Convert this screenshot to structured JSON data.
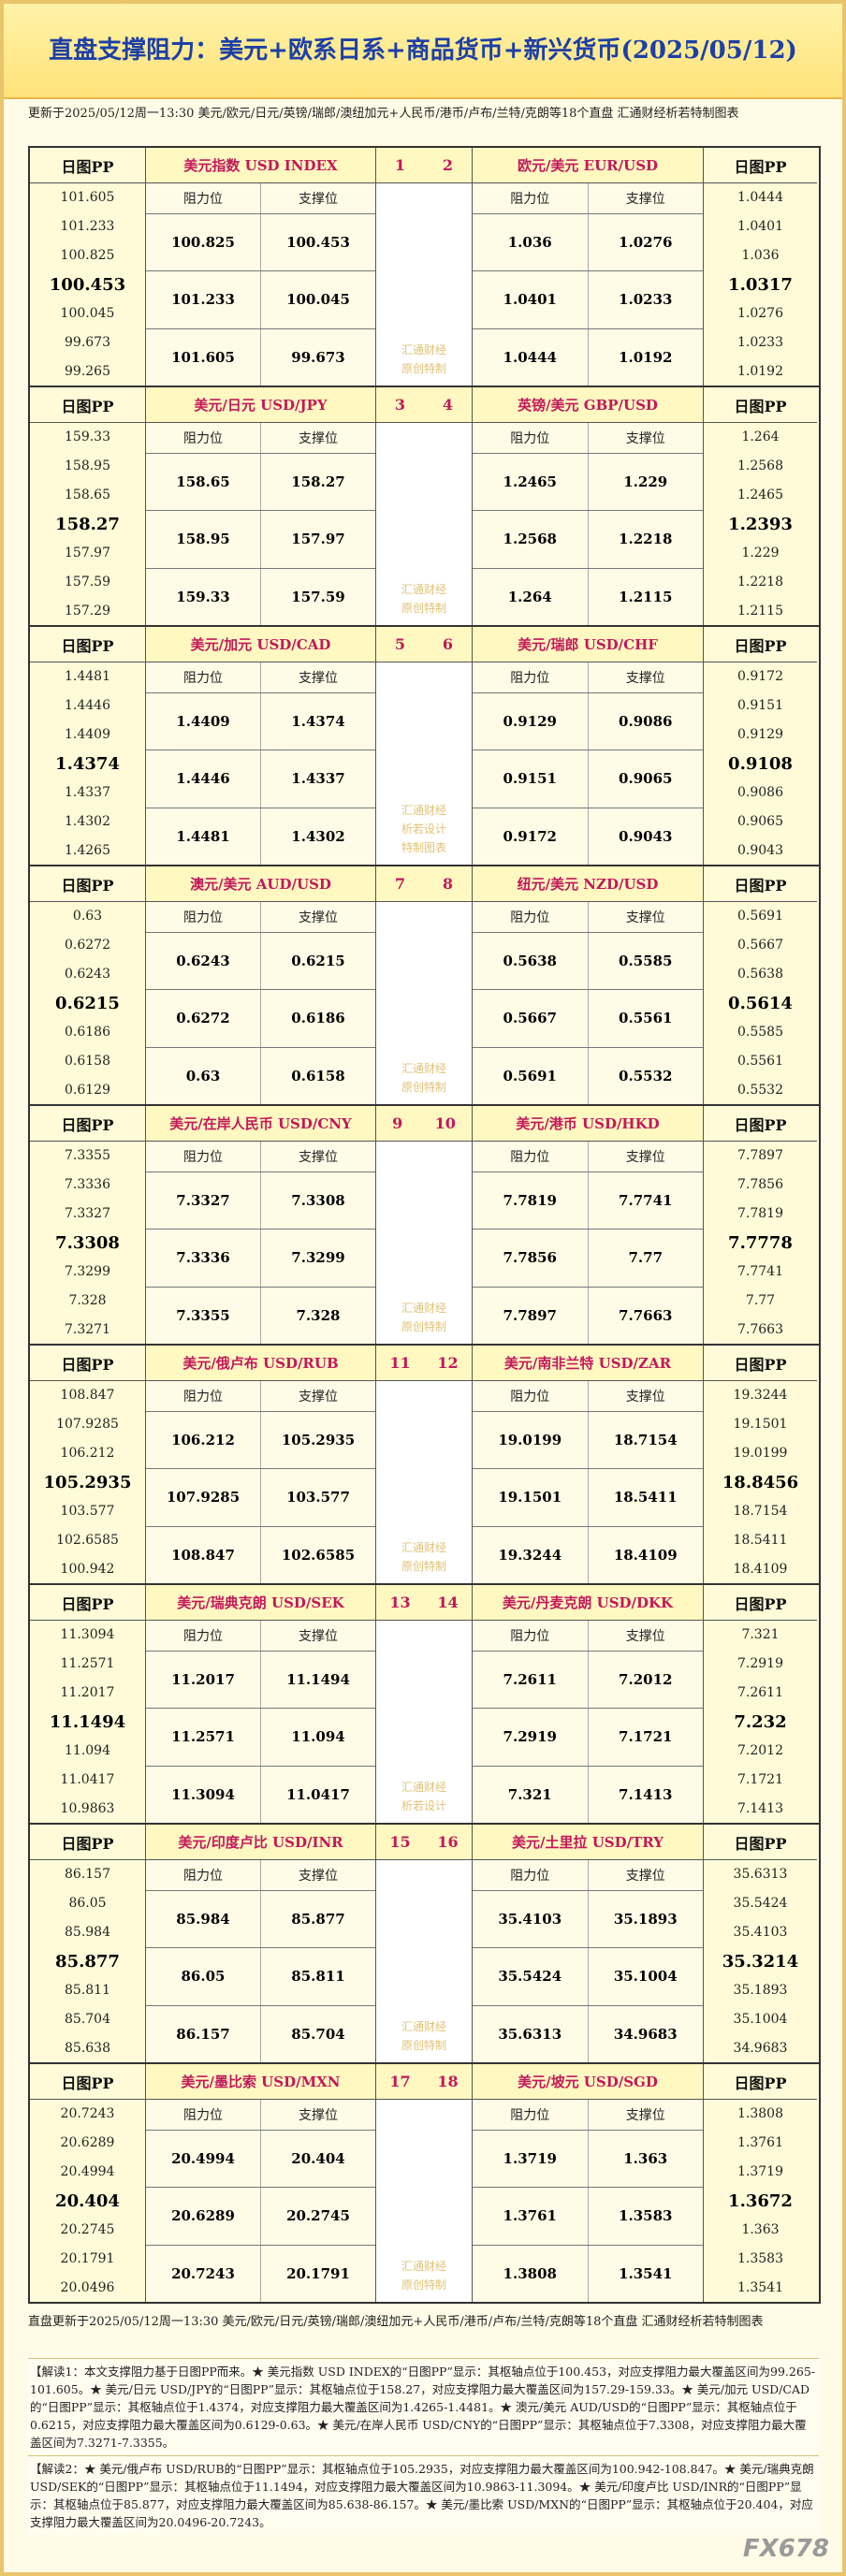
{
  "header": {
    "title": "直盘支撑阻力：美元+欧系日系+商品货币+新兴货币(2025/05/12)",
    "update": "更新于2025/05/12周一13:30 美元/欧元/日元/英镑/瑞郎/澳纽加元+人民币/港币/卢布/兰特/克朗等18个直盘 汇通财经析若特制图表"
  },
  "labels": {
    "pp": "日图PP",
    "resistance": "阻力位",
    "support": "支撑位"
  },
  "blocks": [
    {
      "watermark": [
        "汇通财经",
        "原创特制"
      ],
      "pairs": [
        {
          "number": 1,
          "name": "美元指数 USD INDEX",
          "pp": [
            101.605,
            101.233,
            100.825,
            100.453,
            100.045,
            99.673,
            99.265
          ],
          "levels": [
            [
              100.825,
              100.453
            ],
            [
              101.233,
              100.045
            ],
            [
              101.605,
              99.673
            ]
          ]
        },
        {
          "number": 2,
          "name": "欧元/美元 EUR/USD",
          "pp": [
            1.0444,
            1.0401,
            1.036,
            1.0317,
            1.0276,
            1.0233,
            1.0192
          ],
          "levels": [
            [
              1.036,
              1.0276
            ],
            [
              1.0401,
              1.0233
            ],
            [
              1.0444,
              1.0192
            ]
          ]
        }
      ]
    },
    {
      "watermark": [
        "汇通财经",
        "原创特制"
      ],
      "pairs": [
        {
          "number": 3,
          "name": "美元/日元 USD/JPY",
          "pp": [
            159.33,
            158.95,
            158.65,
            158.27,
            157.97,
            157.59,
            157.29
          ],
          "levels": [
            [
              158.65,
              158.27
            ],
            [
              158.95,
              157.97
            ],
            [
              159.33,
              157.59
            ]
          ]
        },
        {
          "number": 4,
          "name": "英镑/美元 GBP/USD",
          "pp": [
            1.264,
            1.2568,
            1.2465,
            1.2393,
            1.229,
            1.2218,
            1.2115
          ],
          "levels": [
            [
              1.2465,
              1.229
            ],
            [
              1.2568,
              1.2218
            ],
            [
              1.264,
              1.2115
            ]
          ]
        }
      ]
    },
    {
      "watermark": [
        "汇通财经",
        "析若设计",
        "特制图表"
      ],
      "pairs": [
        {
          "number": 5,
          "name": "美元/加元 USD/CAD",
          "pp": [
            1.4481,
            1.4446,
            1.4409,
            1.4374,
            1.4337,
            1.4302,
            1.4265
          ],
          "levels": [
            [
              1.4409,
              1.4374
            ],
            [
              1.4446,
              1.4337
            ],
            [
              1.4481,
              1.4302
            ]
          ]
        },
        {
          "number": 6,
          "name": "美元/瑞郎 USD/CHF",
          "pp": [
            0.9172,
            0.9151,
            0.9129,
            0.9108,
            0.9086,
            0.9065,
            0.9043
          ],
          "levels": [
            [
              0.9129,
              0.9086
            ],
            [
              0.9151,
              0.9065
            ],
            [
              0.9172,
              0.9043
            ]
          ]
        }
      ]
    },
    {
      "watermark": [
        "汇通财经",
        "原创特制"
      ],
      "pairs": [
        {
          "number": 7,
          "name": "澳元/美元 AUD/USD",
          "pp": [
            0.63,
            0.6272,
            0.6243,
            0.6215,
            0.6186,
            0.6158,
            0.6129
          ],
          "levels": [
            [
              0.6243,
              0.6215
            ],
            [
              0.6272,
              0.6186
            ],
            [
              0.63,
              0.6158
            ]
          ]
        },
        {
          "number": 8,
          "name": "纽元/美元 NZD/USD",
          "pp": [
            0.5691,
            0.5667,
            0.5638,
            0.5614,
            0.5585,
            0.5561,
            0.5532
          ],
          "levels": [
            [
              0.5638,
              0.5585
            ],
            [
              0.5667,
              0.5561
            ],
            [
              0.5691,
              0.5532
            ]
          ]
        }
      ]
    },
    {
      "watermark": [
        "汇通财经",
        "原创特制"
      ],
      "pairs": [
        {
          "number": 9,
          "name": "美元/在岸人民币 USD/CNY",
          "pp": [
            7.3355,
            7.3336,
            7.3327,
            7.3308,
            7.3299,
            7.328,
            7.3271
          ],
          "levels": [
            [
              7.3327,
              7.3308
            ],
            [
              7.3336,
              7.3299
            ],
            [
              7.3355,
              7.328
            ]
          ]
        },
        {
          "number": 10,
          "name": "美元/港币 USD/HKD",
          "pp": [
            7.7897,
            7.7856,
            7.7819,
            7.7778,
            7.7741,
            7.77,
            7.7663
          ],
          "levels": [
            [
              7.7819,
              7.7741
            ],
            [
              7.7856,
              7.77
            ],
            [
              7.7897,
              7.7663
            ]
          ]
        }
      ]
    },
    {
      "watermark": [
        "汇通财经",
        "原创特制"
      ],
      "pairs": [
        {
          "number": 11,
          "name": "美元/俄卢布 USD/RUB",
          "pp": [
            108.847,
            107.9285,
            106.212,
            105.2935,
            103.577,
            102.6585,
            100.942
          ],
          "levels": [
            [
              106.212,
              105.2935
            ],
            [
              107.9285,
              103.577
            ],
            [
              108.847,
              102.6585
            ]
          ]
        },
        {
          "number": 12,
          "name": "美元/南非兰特 USD/ZAR",
          "pp": [
            19.3244,
            19.1501,
            19.0199,
            18.8456,
            18.7154,
            18.5411,
            18.4109
          ],
          "levels": [
            [
              19.0199,
              18.7154
            ],
            [
              19.1501,
              18.5411
            ],
            [
              19.3244,
              18.4109
            ]
          ]
        }
      ]
    },
    {
      "watermark": [
        "汇通财经",
        "析若设计"
      ],
      "pairs": [
        {
          "number": 13,
          "name": "美元/瑞典克朗 USD/SEK",
          "pp": [
            11.3094,
            11.2571,
            11.2017,
            11.1494,
            11.094,
            11.0417,
            10.9863
          ],
          "levels": [
            [
              11.2017,
              11.1494
            ],
            [
              11.2571,
              11.094
            ],
            [
              11.3094,
              11.0417
            ]
          ]
        },
        {
          "number": 14,
          "name": "美元/丹麦克朗 USD/DKK",
          "pp": [
            7.321,
            7.2919,
            7.2611,
            7.232,
            7.2012,
            7.1721,
            7.1413
          ],
          "levels": [
            [
              7.2611,
              7.2012
            ],
            [
              7.2919,
              7.1721
            ],
            [
              7.321,
              7.1413
            ]
          ]
        }
      ]
    },
    {
      "watermark": [
        "汇通财经",
        "原创特制"
      ],
      "pairs": [
        {
          "number": 15,
          "name": "美元/印度卢比 USD/INR",
          "pp": [
            86.157,
            86.05,
            85.984,
            85.877,
            85.811,
            85.704,
            85.638
          ],
          "levels": [
            [
              85.984,
              85.877
            ],
            [
              86.05,
              85.811
            ],
            [
              86.157,
              85.704
            ]
          ]
        },
        {
          "number": 16,
          "name": "美元/土里拉 USD/TRY",
          "pp": [
            35.6313,
            35.5424,
            35.4103,
            35.3214,
            35.1893,
            35.1004,
            34.9683
          ],
          "levels": [
            [
              35.4103,
              35.1893
            ],
            [
              35.5424,
              35.1004
            ],
            [
              35.6313,
              34.9683
            ]
          ]
        }
      ]
    },
    {
      "watermark": [
        "汇通财经",
        "原创特制"
      ],
      "pairs": [
        {
          "number": 17,
          "name": "美元/墨比索 USD/MXN",
          "pp": [
            20.7243,
            20.6289,
            20.4994,
            20.404,
            20.2745,
            20.1791,
            20.0496
          ],
          "levels": [
            [
              20.4994,
              20.404
            ],
            [
              20.6289,
              20.2745
            ],
            [
              20.7243,
              20.1791
            ]
          ]
        },
        {
          "number": 18,
          "name": "美元/坡元 USD/SGD",
          "pp": [
            1.3808,
            1.3761,
            1.3719,
            1.3672,
            1.363,
            1.3583,
            1.3541
          ],
          "levels": [
            [
              1.3719,
              1.363
            ],
            [
              1.3761,
              1.3583
            ],
            [
              1.3808,
              1.3541
            ]
          ]
        }
      ]
    }
  ],
  "footer": {
    "update": "直盘更新于2025/05/12周一13:30 美元/欧元/日元/英镑/瑞郎/澳纽加元+人民币/港币/卢布/兰特/克朗等18个直盘 汇通财经析若特制图表",
    "notes": [
      "【解读1：本文支撑阻力基于日图PP而来。★ 美元指数 USD INDEX的“日图PP”显示：其枢轴点位于100.453，对应支撑阻力最大覆盖区间为99.265-101.605。★ 美元/日元 USD/JPY的“日图PP”显示：其枢轴点位于158.27，对应支撑阻力最大覆盖区间为157.29-159.33。★ 美元/加元 USD/CAD的“日图PP”显示：其枢轴点位于1.4374，对应支撑阻力最大覆盖区间为1.4265-1.4481。★ 澳元/美元 AUD/USD的“日图PP”显示：其枢轴点位于0.6215，对应支撑阻力最大覆盖区间为0.6129-0.63。★ 美元/在岸人民币 USD/CNY的“日图PP”显示：其枢轴点位于7.3308，对应支撑阻力最大覆盖区间为7.3271-7.3355。",
      "【解读2：★ 美元/俄卢布 USD/RUB的“日图PP”显示：其枢轴点位于105.2935，对应支撑阻力最大覆盖区间为100.942-108.847。★ 美元/瑞典克朗 USD/SEK的“日图PP”显示：其枢轴点位于11.1494，对应支撑阻力最大覆盖区间为10.9863-11.3094。★ 美元/印度卢比 USD/INR的“日图PP”显示：其枢轴点位于85.877，对应支撑阻力最大覆盖区间为85.638-86.157。★ 美元/墨比索 USD/MXN的“日图PP”显示：其枢轴点位于20.404，对应支撑阻力最大覆盖区间为20.0496-20.7243。"
    ],
    "logo": "FX678"
  }
}
